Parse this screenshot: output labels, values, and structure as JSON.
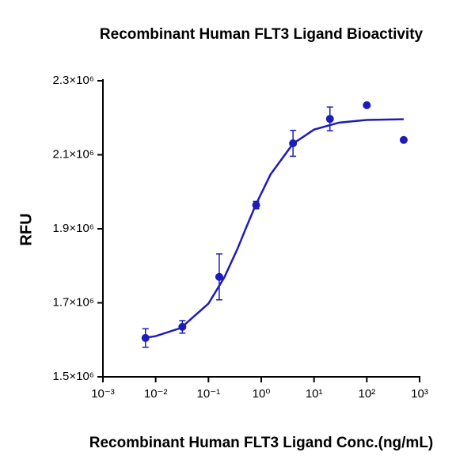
{
  "chart_data": {
    "type": "scatter",
    "title": "Recombinant Human FLT3 Ligand Bioactivity",
    "xlabel": "Recombinant Human FLT3 Ligand Conc.(ng/mL)",
    "ylabel": "RFU",
    "xscale": "log",
    "xlim": [
      0.001,
      1000
    ],
    "xticks": [
      {
        "value": 0.001,
        "label": "10⁻³"
      },
      {
        "value": 0.01,
        "label": "10⁻²"
      },
      {
        "value": 0.1,
        "label": "10⁻¹"
      },
      {
        "value": 1,
        "label": "10⁰"
      },
      {
        "value": 10,
        "label": "10¹"
      },
      {
        "value": 100,
        "label": "10²"
      },
      {
        "value": 1000,
        "label": "10³"
      }
    ],
    "ylim": [
      1500000,
      2300000
    ],
    "yticks": [
      {
        "value": 1500000,
        "label": "1.5×10⁶"
      },
      {
        "value": 1700000,
        "label": "1.7×10⁶"
      },
      {
        "value": 1900000,
        "label": "1.9×10⁶"
      },
      {
        "value": 2100000,
        "label": "2.1×10⁶"
      },
      {
        "value": 2300000,
        "label": "2.3×10⁶"
      }
    ],
    "color": "#1c1cb8",
    "points": {
      "x": [
        0.0064,
        0.032,
        0.16,
        0.8,
        4,
        20,
        100,
        500
      ],
      "values": [
        1605000,
        1635000,
        1770000,
        1964000,
        2131000,
        2197000,
        2234000,
        2140000
      ],
      "errors": [
        25000,
        17000,
        62000,
        10000,
        35000,
        32000,
        null,
        null
      ]
    },
    "curve": {
      "x": [
        0.006,
        0.01,
        0.03,
        0.1,
        0.2,
        0.35,
        0.5,
        0.8,
        1.5,
        4,
        10,
        30,
        100,
        500
      ],
      "values": [
        1605000,
        1610000,
        1632000,
        1698000,
        1769000,
        1844000,
        1898000,
        1967000,
        2047000,
        2130000,
        2168000,
        2187000,
        2194000,
        2196000
      ]
    }
  }
}
